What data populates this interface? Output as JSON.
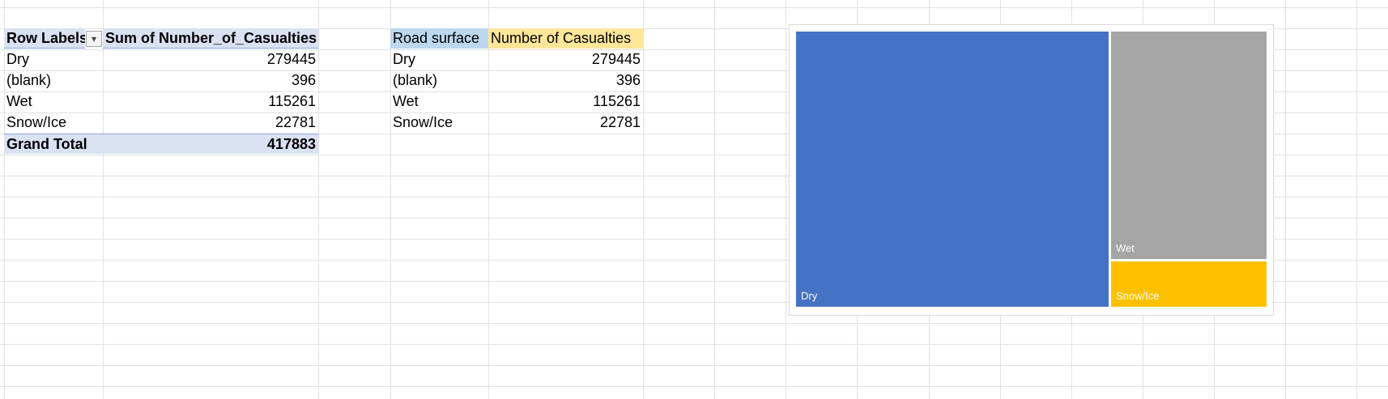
{
  "pivot_table": {
    "header_row_labels": "Row Labels",
    "header_sum": "Sum of Number_of_Casualties",
    "filter_icon": "filter-dropdown-icon",
    "rows": [
      {
        "label": "Dry",
        "value": "279445"
      },
      {
        "label": "(blank)",
        "value": "396"
      },
      {
        "label": "Wet",
        "value": "115261"
      },
      {
        "label": "Snow/Ice",
        "value": "22781"
      }
    ],
    "grand_total_label": "Grand Total",
    "grand_total_value": "417883"
  },
  "source_table": {
    "header_surface": "Road surface",
    "header_casualties": "Number of Casualties",
    "rows": [
      {
        "label": "Dry",
        "value": "279445"
      },
      {
        "label": "(blank)",
        "value": "396"
      },
      {
        "label": "Wet",
        "value": "115261"
      },
      {
        "label": "Snow/Ice",
        "value": "22781"
      }
    ]
  },
  "chart_data": {
    "type": "treemap",
    "categories": [
      "Dry",
      "Wet",
      "Snow/Ice"
    ],
    "values": [
      279445,
      115261,
      22781
    ],
    "colors": [
      "#4472c4",
      "#a5a5a5",
      "#ffc000"
    ],
    "title": ""
  }
}
